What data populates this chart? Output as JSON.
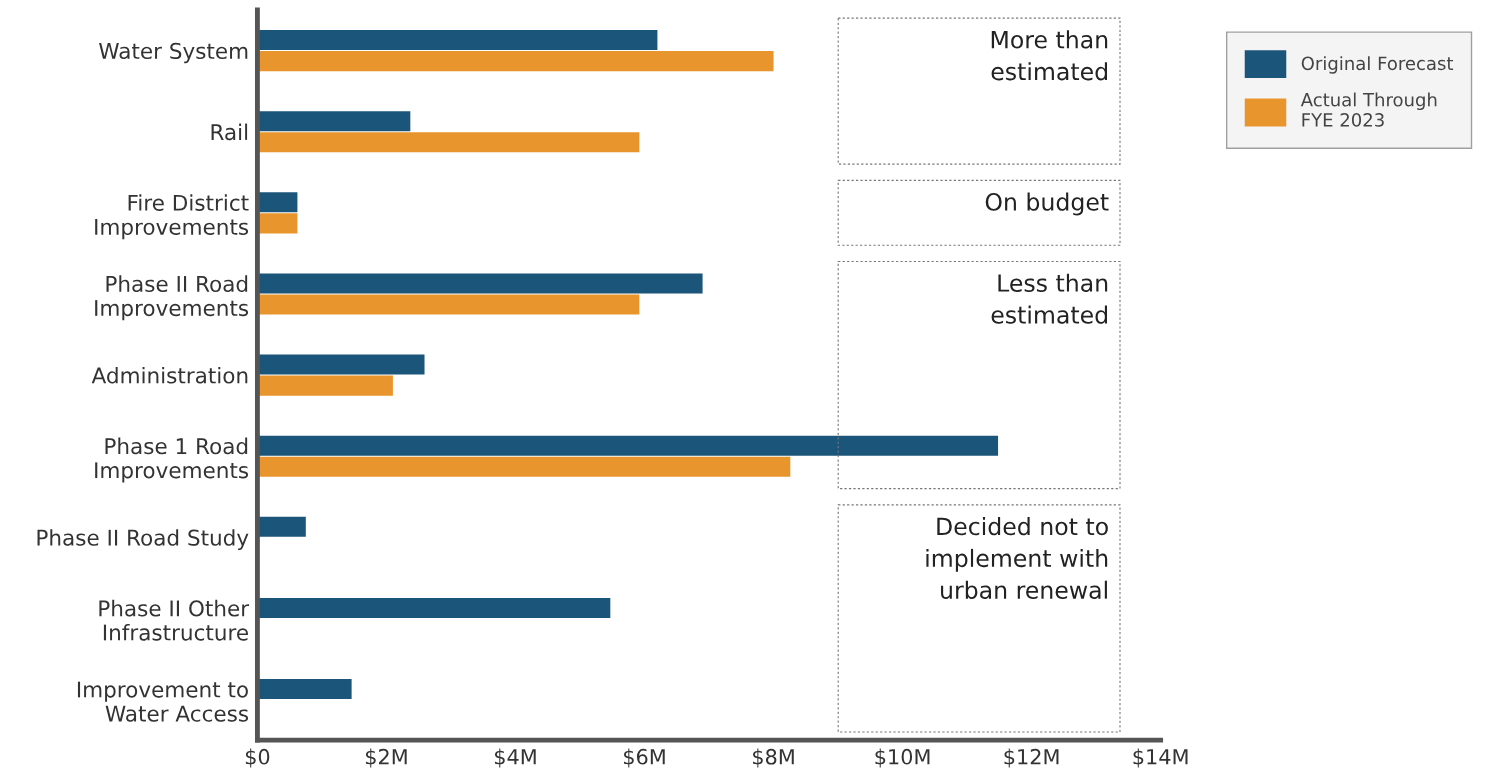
{
  "chart_data": {
    "type": "bar",
    "orientation": "horizontal",
    "categories": [
      "Water System",
      "Rail",
      "Fire District\nImprovements",
      "Phase II Road\nImprovements",
      "Administration",
      "Phase 1 Road\nImprovements",
      "Phase II Road Study",
      "Phase II Other\nInfrastructure",
      "Improvement to\nWater Access"
    ],
    "series": [
      {
        "name": "Original Forecast",
        "color": "#1b5579",
        "values": [
          6.2,
          2.37,
          0.62,
          6.9,
          2.59,
          11.48,
          0.75,
          5.47,
          1.46
        ]
      },
      {
        "name": "Actual Through\nFYE 2023",
        "color": "#e8952d",
        "values": [
          8.0,
          5.92,
          0.62,
          5.92,
          2.1,
          8.26,
          null,
          null,
          null
        ]
      }
    ],
    "xlim": [
      0,
      14
    ],
    "xticks": [
      {
        "value": 0,
        "label": "$0"
      },
      {
        "value": 2,
        "label": "$2M"
      },
      {
        "value": 4,
        "label": "$4M"
      },
      {
        "value": 6,
        "label": "$6M"
      },
      {
        "value": 8,
        "label": "$8M"
      },
      {
        "value": 10,
        "label": "$10M"
      },
      {
        "value": 12,
        "label": "$12M"
      },
      {
        "value": 14,
        "label": "$14M"
      }
    ],
    "annotations": [
      "More than\nestimated",
      "On budget",
      "Less than\nestimated",
      "Decided not to\nimplement with\nurban renewal"
    ],
    "grid": false,
    "legend": "top right"
  }
}
